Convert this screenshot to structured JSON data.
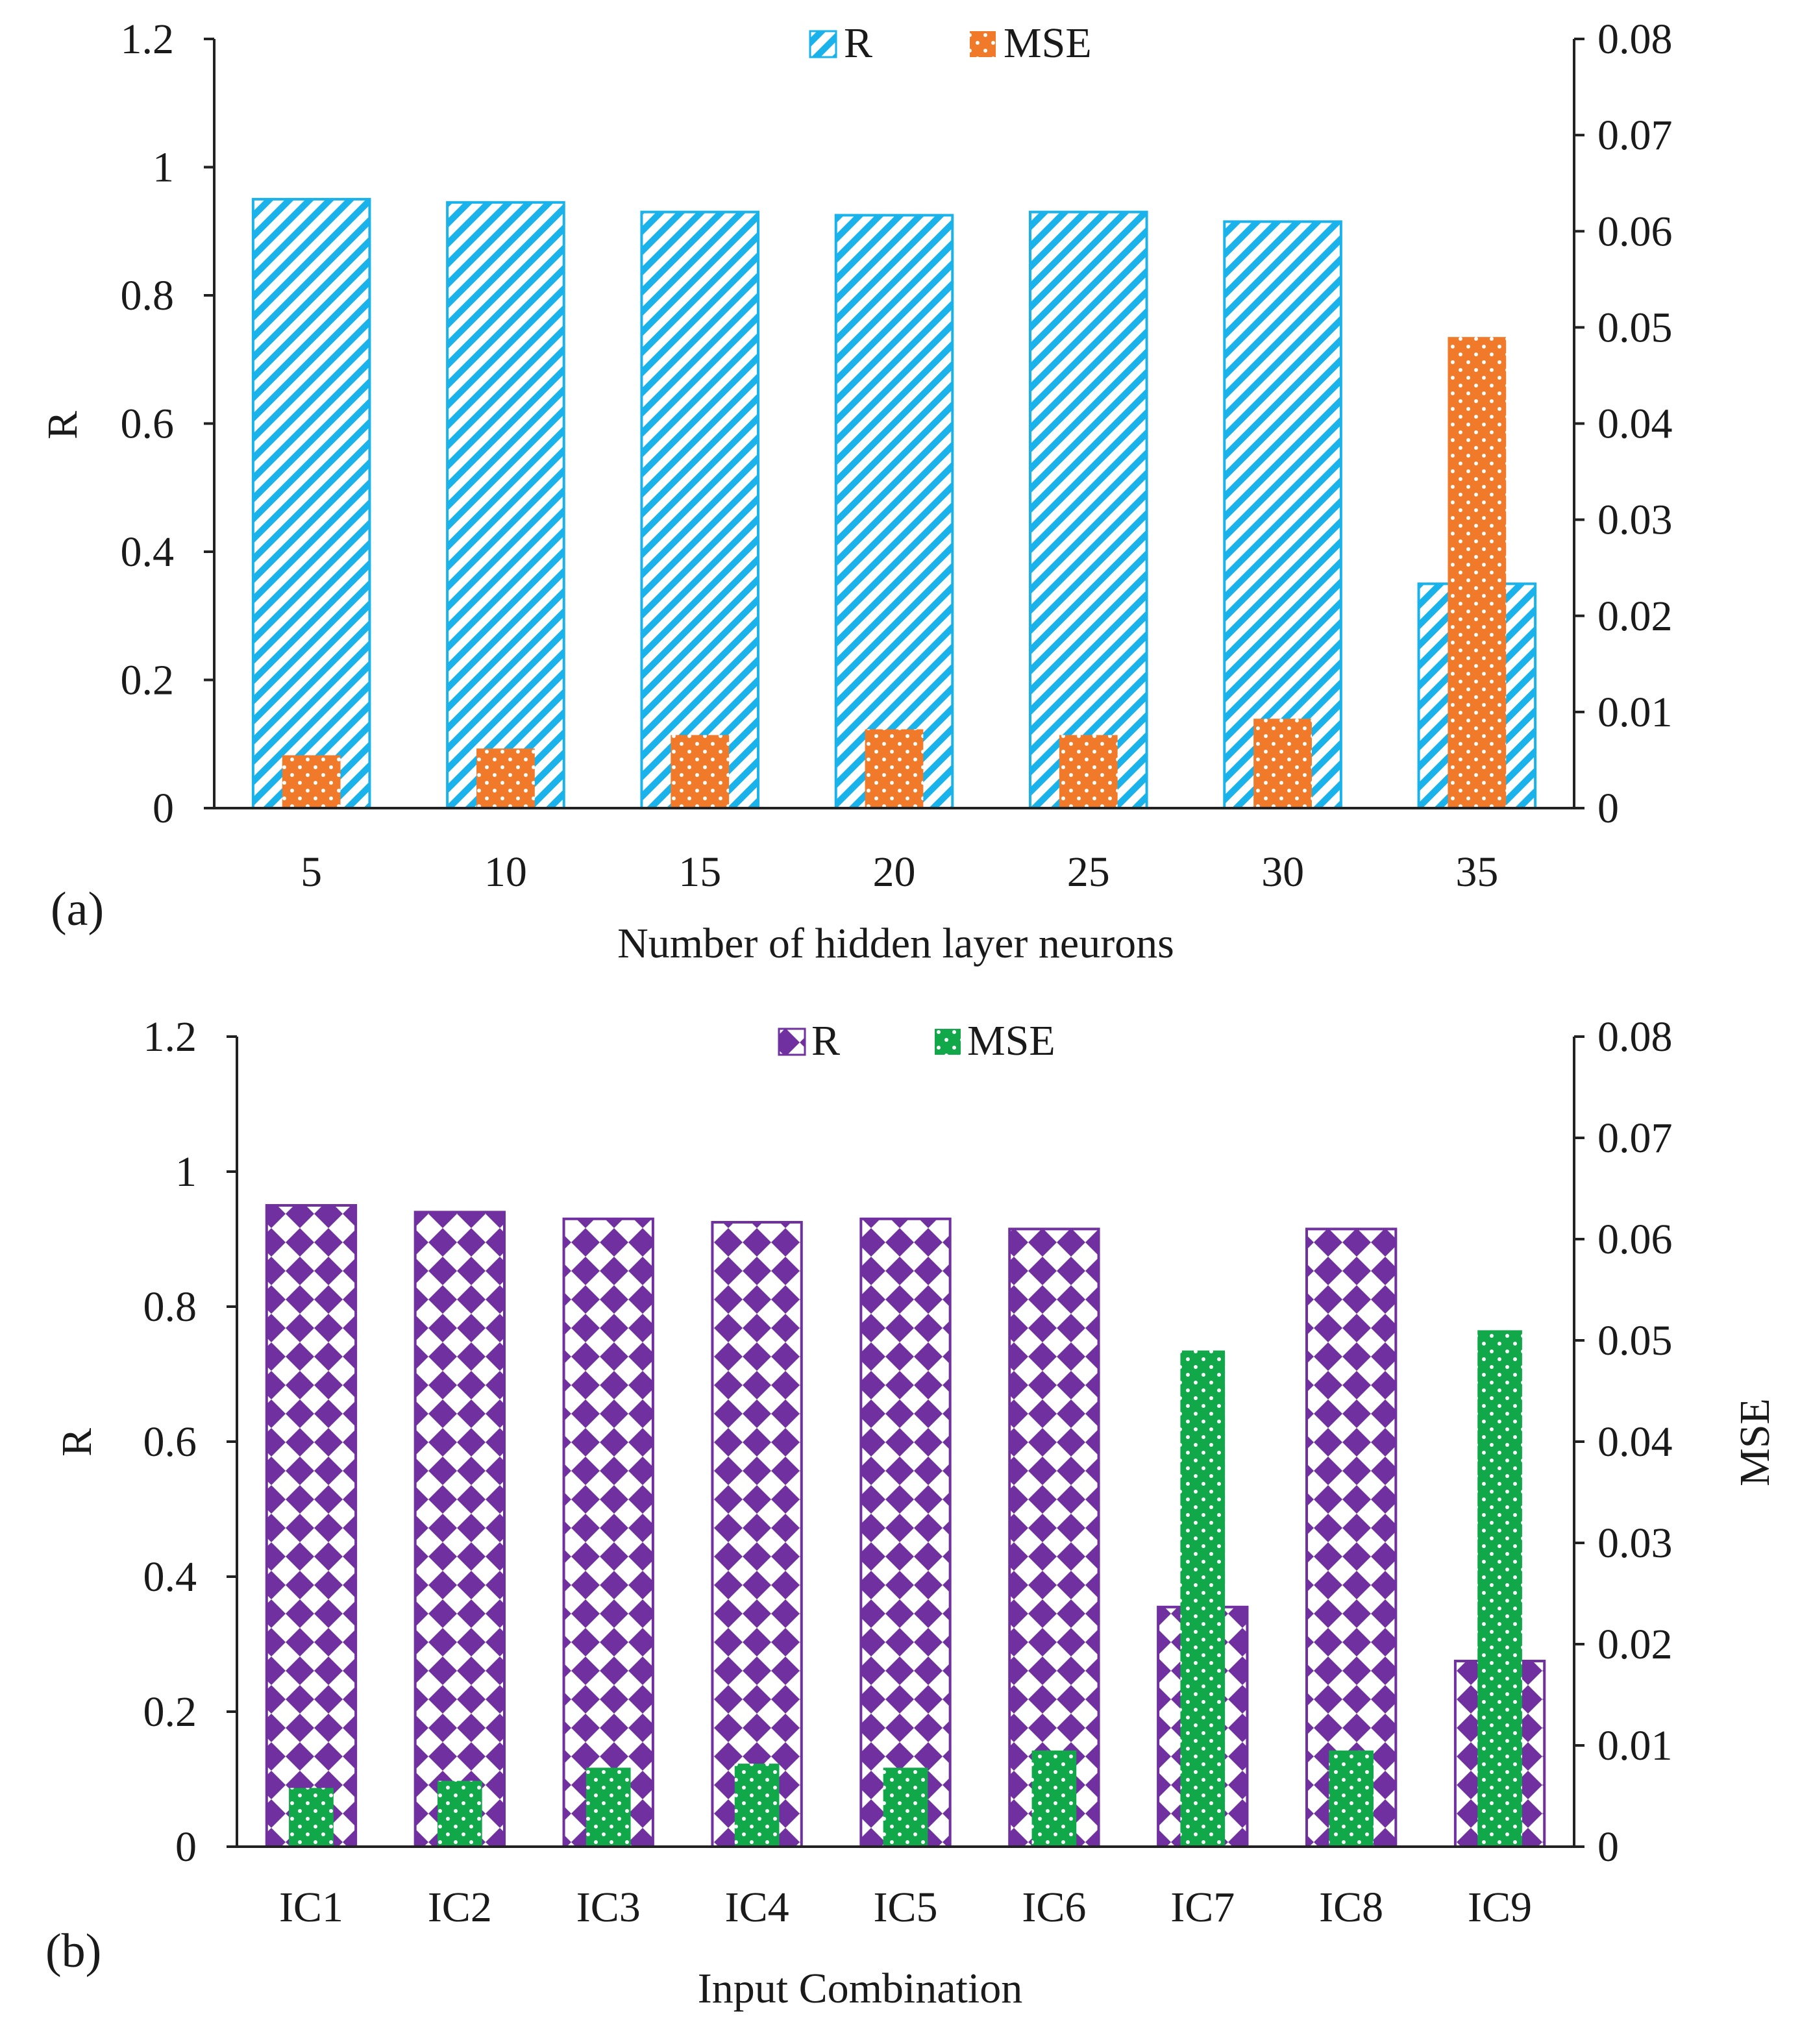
{
  "chart_data": [
    {
      "type": "bar",
      "panel_label": "(a)",
      "categories": [
        "5",
        "10",
        "15",
        "20",
        "25",
        "30",
        "35"
      ],
      "series": [
        {
          "name": "R",
          "axis": "left",
          "values": [
            0.95,
            0.945,
            0.93,
            0.925,
            0.93,
            0.915,
            0.35
          ],
          "color": "#1ab2ea",
          "pattern": "diagonal-stripes"
        },
        {
          "name": "MSE",
          "axis": "right",
          "values": [
            0.0055,
            0.0062,
            0.0076,
            0.0082,
            0.0076,
            0.0093,
            0.049
          ],
          "color": "#f07a2a",
          "pattern": "dots"
        }
      ],
      "xlabel": "Number of hidden layer neurons",
      "ylabel": "R",
      "y2label": "",
      "ylim": [
        0,
        1.2
      ],
      "y2lim": [
        0,
        0.08
      ],
      "yticks": [
        "0",
        "0.2",
        "0.4",
        "0.6",
        "0.8",
        "1",
        "1.2"
      ],
      "y2ticks": [
        "0",
        "0.01",
        "0.02",
        "0.03",
        "0.04",
        "0.05",
        "0.06",
        "0.07",
        "0.08"
      ],
      "legend": [
        "R",
        "MSE"
      ],
      "legend_position": "top-center",
      "grid": false
    },
    {
      "type": "bar",
      "panel_label": "(b)",
      "categories": [
        "IC1",
        "IC2",
        "IC3",
        "IC4",
        "IC5",
        "IC6",
        "IC7",
        "IC8",
        "IC9"
      ],
      "series": [
        {
          "name": "R",
          "axis": "left",
          "values": [
            0.95,
            0.94,
            0.93,
            0.925,
            0.93,
            0.915,
            0.355,
            0.915,
            0.275
          ],
          "color": "#7030a0",
          "pattern": "diamond-checker"
        },
        {
          "name": "MSE",
          "axis": "right",
          "values": [
            0.0058,
            0.0065,
            0.0078,
            0.0082,
            0.0078,
            0.0095,
            0.049,
            0.0095,
            0.051
          ],
          "color": "#11a84a",
          "pattern": "dots"
        }
      ],
      "xlabel": "Input Combination",
      "ylabel": "R",
      "y2label": "MSE",
      "ylim": [
        0,
        1.2
      ],
      "y2lim": [
        0,
        0.08
      ],
      "yticks": [
        "0",
        "0.2",
        "0.4",
        "0.6",
        "0.8",
        "1",
        "1.2"
      ],
      "y2ticks": [
        "0",
        "0.01",
        "0.02",
        "0.03",
        "0.04",
        "0.05",
        "0.06",
        "0.07",
        "0.08"
      ],
      "legend": [
        "R",
        "MSE"
      ],
      "legend_position": "top-center",
      "grid": false
    }
  ]
}
